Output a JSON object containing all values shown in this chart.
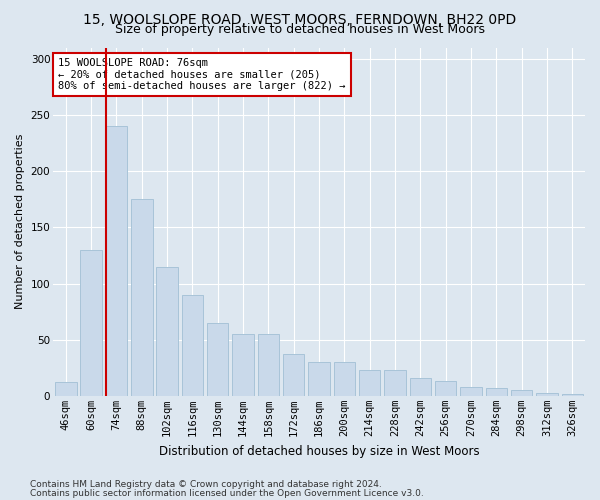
{
  "title1": "15, WOOLSLOPE ROAD, WEST MOORS, FERNDOWN, BH22 0PD",
  "title2": "Size of property relative to detached houses in West Moors",
  "xlabel": "Distribution of detached houses by size in West Moors",
  "ylabel": "Number of detached properties",
  "categories": [
    "46sqm",
    "60sqm",
    "74sqm",
    "88sqm",
    "102sqm",
    "116sqm",
    "130sqm",
    "144sqm",
    "158sqm",
    "172sqm",
    "186sqm",
    "200sqm",
    "214sqm",
    "228sqm",
    "242sqm",
    "256sqm",
    "270sqm",
    "284sqm",
    "298sqm",
    "312sqm",
    "326sqm"
  ],
  "values": [
    12,
    130,
    240,
    175,
    115,
    90,
    65,
    55,
    55,
    37,
    30,
    30,
    23,
    23,
    16,
    13,
    8,
    7,
    5,
    3,
    2
  ],
  "bar_color": "#c9d9ea",
  "bar_edge_color": "#a8c4d8",
  "vline_x_index": 2,
  "vline_color": "#cc0000",
  "annotation_text": "15 WOOLSLOPE ROAD: 76sqm\n← 20% of detached houses are smaller (205)\n80% of semi-detached houses are larger (822) →",
  "annotation_box_facecolor": "#ffffff",
  "annotation_box_edgecolor": "#cc0000",
  "ylim": [
    0,
    310
  ],
  "yticks": [
    0,
    50,
    100,
    150,
    200,
    250,
    300
  ],
  "footer1": "Contains HM Land Registry data © Crown copyright and database right 2024.",
  "footer2": "Contains public sector information licensed under the Open Government Licence v3.0.",
  "bg_color": "#dde7f0",
  "plot_bg_color": "#dde7f0",
  "grid_color": "#ffffff",
  "title1_fontsize": 10,
  "title2_fontsize": 9,
  "xlabel_fontsize": 8.5,
  "ylabel_fontsize": 8,
  "tick_fontsize": 7.5,
  "annot_fontsize": 7.5,
  "footer_fontsize": 6.5
}
